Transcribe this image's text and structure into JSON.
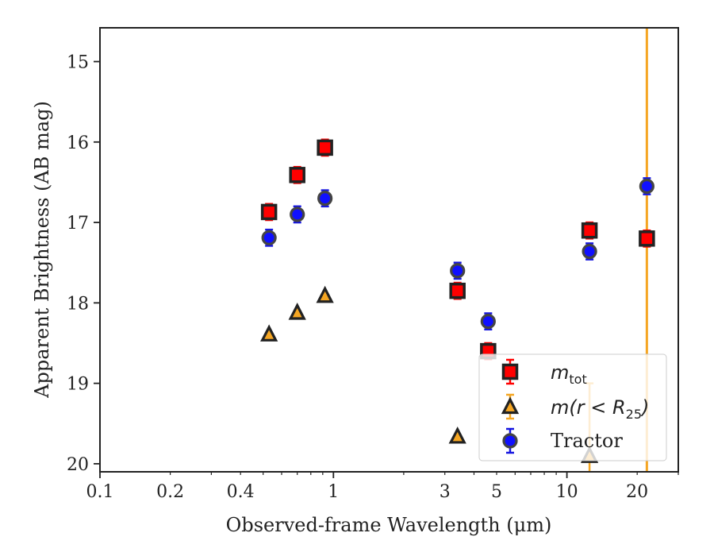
{
  "chart_data": {
    "type": "scatter",
    "xlabel": "Observed-frame Wavelength (μm)",
    "ylabel": "Apparent Brightness (AB mag)",
    "x_scale": "log",
    "xlim": [
      0.1,
      30
    ],
    "ylim": [
      20.1,
      14.58
    ],
    "y_inverted": true,
    "x_ticks": [
      {
        "value": 0.1,
        "label": "0.1"
      },
      {
        "value": 0.2,
        "label": "0.2"
      },
      {
        "value": 0.4,
        "label": "0.4"
      },
      {
        "value": 1,
        "label": "1"
      },
      {
        "value": 3,
        "label": "3"
      },
      {
        "value": 5,
        "label": "5"
      },
      {
        "value": 10,
        "label": "10"
      },
      {
        "value": 20,
        "label": "20"
      }
    ],
    "y_ticks": [
      {
        "value": 15,
        "label": "15"
      },
      {
        "value": 16,
        "label": "16"
      },
      {
        "value": 17,
        "label": "17"
      },
      {
        "value": 18,
        "label": "18"
      },
      {
        "value": 19,
        "label": "19"
      },
      {
        "value": 20,
        "label": "20"
      }
    ],
    "grid": false,
    "legend_position": "lower-right",
    "vertical_line": {
      "x": 22,
      "color": "#f5a623"
    },
    "series": [
      {
        "name": "m_tot",
        "legend_text": "m",
        "legend_sub": "tot",
        "marker": "square",
        "face_color": "#ff0000",
        "edge_color": "#222222",
        "error_color": "#ff0000",
        "points": [
          {
            "x": 0.53,
            "y": 16.87,
            "err": 0.1
          },
          {
            "x": 0.7,
            "y": 16.41,
            "err": 0.1
          },
          {
            "x": 0.92,
            "y": 16.07,
            "err": 0.1
          },
          {
            "x": 3.4,
            "y": 17.85,
            "err": 0.1
          },
          {
            "x": 4.6,
            "y": 18.6,
            "err": 0.1
          },
          {
            "x": 12.5,
            "y": 17.1,
            "err": 0.1
          },
          {
            "x": 22,
            "y": 17.2,
            "err": 0.1
          }
        ]
      },
      {
        "name": "m(r < R_25)",
        "legend_text": "m(r < R",
        "legend_sub": "25",
        "legend_suffix": ")",
        "marker": "triangle",
        "face_color": "#f5a623",
        "edge_color": "#222222",
        "error_color": "#f5a623",
        "points": [
          {
            "x": 0.53,
            "y": 18.39,
            "err": 0.0
          },
          {
            "x": 0.7,
            "y": 18.12,
            "err": 0.0
          },
          {
            "x": 0.92,
            "y": 17.91,
            "err": 0.0
          },
          {
            "x": 3.4,
            "y": 19.66,
            "err": 0.0
          },
          {
            "x": 12.5,
            "y": 19.9,
            "err": 0.9
          }
        ]
      },
      {
        "name": "Tractor",
        "legend_text": "Tractor",
        "marker": "circle",
        "face_color": "#1010ff",
        "edge_color": "#444444",
        "error_color": "#1515e0",
        "points": [
          {
            "x": 0.53,
            "y": 17.19,
            "err": 0.1
          },
          {
            "x": 0.7,
            "y": 16.9,
            "err": 0.1
          },
          {
            "x": 0.92,
            "y": 16.7,
            "err": 0.1
          },
          {
            "x": 3.4,
            "y": 17.6,
            "err": 0.1
          },
          {
            "x": 4.6,
            "y": 18.23,
            "err": 0.1
          },
          {
            "x": 12.5,
            "y": 17.36,
            "err": 0.1
          },
          {
            "x": 22,
            "y": 16.55,
            "err": 0.1
          }
        ]
      }
    ]
  }
}
